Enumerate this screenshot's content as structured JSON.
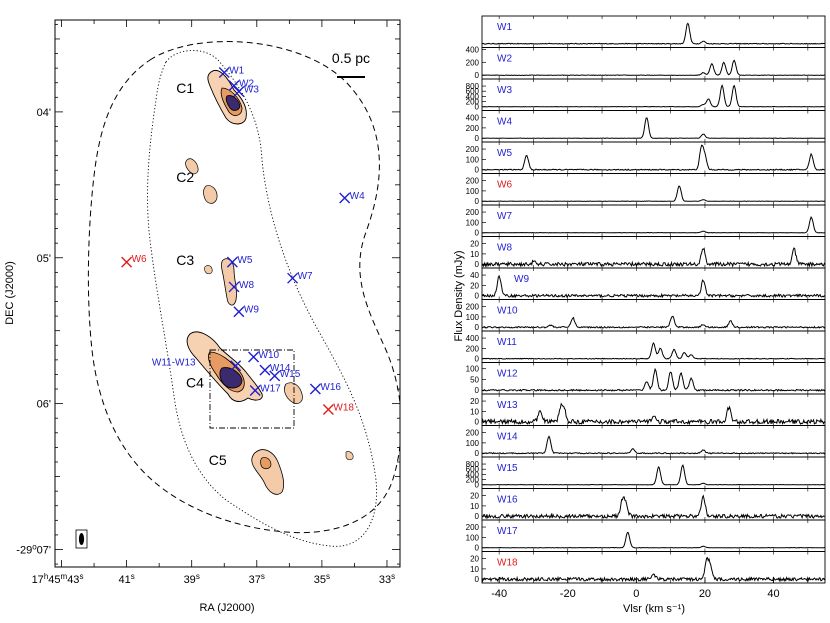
{
  "colors": {
    "blue": "#1f1fd2",
    "red": "#e01b1b",
    "contour_light": "#f4cba8",
    "contour_mid": "#e69a5e",
    "contour_dark": "#b2541f",
    "contour_core": "#3b2a6e"
  },
  "chart_data": [
    {
      "type": "map",
      "xlabel": "RA (J2000)",
      "ylabel": "DEC (J2000)",
      "x_ticks": [
        "17h45m43s",
        "41s",
        "39s",
        "37s",
        "35s",
        "33s"
      ],
      "y_ticks": [
        "04'",
        "05'",
        "06'",
        "-29°07'"
      ],
      "ra_sec_range": [
        43.2,
        32.6
      ],
      "dec_arcmin_range": [
        3.37,
        7.12
      ],
      "scale_bar_label": "0.5 pc",
      "regions": [
        {
          "name": "C1",
          "ra": 39.2,
          "dec": 3.87
        },
        {
          "name": "C2",
          "ra": 39.2,
          "dec": 4.48
        },
        {
          "name": "C3",
          "ra": 39.2,
          "dec": 5.05
        },
        {
          "name": "C4",
          "ra": 38.9,
          "dec": 5.89
        },
        {
          "name": "C5",
          "ra": 38.2,
          "dec": 6.42
        }
      ],
      "masers": [
        {
          "name": "W1",
          "ra": 38.0,
          "dec": 3.73,
          "color": "blue"
        },
        {
          "name": "W2",
          "ra": 37.7,
          "dec": 3.82,
          "color": "blue"
        },
        {
          "name": "W3",
          "ra": 37.55,
          "dec": 3.86,
          "color": "blue"
        },
        {
          "name": "W4",
          "ra": 34.3,
          "dec": 4.59,
          "color": "blue"
        },
        {
          "name": "W5",
          "ra": 37.75,
          "dec": 5.03,
          "color": "blue"
        },
        {
          "name": "W6",
          "ra": 41.0,
          "dec": 5.03,
          "color": "red"
        },
        {
          "name": "W7",
          "ra": 35.9,
          "dec": 5.14,
          "color": "blue"
        },
        {
          "name": "W8",
          "ra": 37.7,
          "dec": 5.2,
          "color": "blue"
        },
        {
          "name": "W9",
          "ra": 37.55,
          "dec": 5.37,
          "color": "blue"
        },
        {
          "name": "W10",
          "ra": 37.1,
          "dec": 5.68,
          "color": "blue"
        },
        {
          "name": "W11-W13",
          "ra": 37.65,
          "dec": 5.74,
          "color": "blue"
        },
        {
          "name": "W14",
          "ra": 36.75,
          "dec": 5.77,
          "color": "blue"
        },
        {
          "name": "W15",
          "ra": 36.45,
          "dec": 5.81,
          "color": "blue"
        },
        {
          "name": "W16",
          "ra": 35.2,
          "dec": 5.9,
          "color": "blue"
        },
        {
          "name": "W17",
          "ra": 37.05,
          "dec": 5.91,
          "color": "blue"
        },
        {
          "name": "W18",
          "ra": 34.8,
          "dec": 6.04,
          "color": "red"
        }
      ]
    },
    {
      "type": "line",
      "xlabel": "Vlsr (km s⁻¹)",
      "ylabel": "Flux Density (mJy)",
      "xlim": [
        -45,
        55
      ],
      "x_ticks": [
        -40,
        -20,
        0,
        20,
        40
      ],
      "series": [
        {
          "name": "W1",
          "color": "blue",
          "ymax": 60,
          "yticks": [],
          "peaks": [
            [
              15.0,
              48
            ],
            [
              19.5,
              6
            ]
          ],
          "noise": 0.9
        },
        {
          "name": "W2",
          "color": "blue",
          "ymax": 400,
          "yticks": [
            0,
            200,
            400
          ],
          "peaks": [
            [
              22.0,
              180
            ],
            [
              25.5,
              200
            ],
            [
              28.5,
              230
            ],
            [
              19.5,
              40
            ]
          ],
          "noise": 4
        },
        {
          "name": "W3",
          "color": "blue",
          "ymax": 1000,
          "yticks": [
            0,
            200,
            400,
            600,
            800
          ],
          "peaks": [
            [
              25.0,
              820
            ],
            [
              28.5,
              820
            ],
            [
              21.0,
              300
            ],
            [
              19.5,
              80
            ]
          ],
          "noise": 8
        },
        {
          "name": "W4",
          "color": "blue",
          "ymax": 500,
          "yticks": [
            0,
            200,
            400
          ],
          "peaks": [
            [
              3.0,
              400
            ],
            [
              19.5,
              80
            ]
          ],
          "noise": 4
        },
        {
          "name": "W5",
          "color": "blue",
          "ymax": 250,
          "yticks": [
            0,
            100,
            200
          ],
          "peaks": [
            [
              -32.0,
              140
            ],
            [
              19.0,
              210
            ],
            [
              20.0,
              120
            ],
            [
              51.0,
              150
            ]
          ],
          "noise": 5
        },
        {
          "name": "W6",
          "color": "red",
          "ymax": 250,
          "yticks": [
            0,
            100,
            200
          ],
          "peaks": [
            [
              12.5,
              150
            ],
            [
              19.5,
              15
            ]
          ],
          "noise": 2
        },
        {
          "name": "W7",
          "color": "blue",
          "ymax": 250,
          "yticks": [
            0,
            100,
            200
          ],
          "peaks": [
            [
              51.0,
              150
            ],
            [
              19.5,
              15
            ]
          ],
          "noise": 2
        },
        {
          "name": "W8",
          "color": "blue",
          "ymax": 25,
          "yticks": [
            0,
            10,
            20
          ],
          "peaks": [
            [
              19.5,
              16
            ],
            [
              46.0,
              14
            ],
            [
              -30.0,
              2
            ]
          ],
          "noise": 1.8
        },
        {
          "name": "W9",
          "color": "blue",
          "ymax": 50,
          "yticks": [
            0,
            20,
            40
          ],
          "peaks": [
            [
              -40.0,
              38
            ],
            [
              19.5,
              30
            ]
          ],
          "noise": 2.5
        },
        {
          "name": "W10",
          "color": "blue",
          "ymax": 250,
          "yticks": [
            0,
            100,
            200
          ],
          "peaks": [
            [
              -18.5,
              90
            ],
            [
              10.5,
              110
            ],
            [
              27.5,
              60
            ],
            [
              -25.0,
              20
            ],
            [
              19.5,
              25
            ]
          ],
          "noise": 7
        },
        {
          "name": "W11",
          "color": "blue",
          "ymax": 500,
          "yticks": [
            0,
            200,
            400
          ],
          "peaks": [
            [
              5.0,
              300
            ],
            [
              7.0,
              200
            ],
            [
              11.0,
              180
            ],
            [
              14.0,
              120
            ],
            [
              16.0,
              80
            ]
          ],
          "noise": 7
        },
        {
          "name": "W12",
          "color": "blue",
          "ymax": 120,
          "yticks": [
            0,
            50,
            100
          ],
          "peaks": [
            [
              5.5,
              95
            ],
            [
              10.0,
              85
            ],
            [
              13.0,
              80
            ],
            [
              16.0,
              55
            ],
            [
              3.0,
              40
            ]
          ],
          "noise": 3.5
        },
        {
          "name": "W13",
          "color": "blue",
          "ymax": 25,
          "yticks": [
            0,
            10,
            20
          ],
          "peaks": [
            [
              -28.0,
              12
            ],
            [
              -22.0,
              14
            ],
            [
              -21.0,
              10
            ],
            [
              27.0,
              14
            ],
            [
              5.0,
              6
            ]
          ],
          "noise": 2.2
        },
        {
          "name": "W14",
          "color": "blue",
          "ymax": 250,
          "yticks": [
            0,
            100,
            200
          ],
          "peaks": [
            [
              -25.5,
              160
            ],
            [
              -1.0,
              40
            ],
            [
              19.5,
              30
            ]
          ],
          "noise": 5
        },
        {
          "name": "W15",
          "color": "blue",
          "ymax": 1000,
          "yticks": [
            0,
            200,
            400,
            600,
            800
          ],
          "peaks": [
            [
              6.5,
              690
            ],
            [
              13.5,
              760
            ],
            [
              19.5,
              60
            ]
          ],
          "noise": 8
        },
        {
          "name": "W16",
          "color": "blue",
          "ymax": 25,
          "yticks": [
            0,
            10,
            20
          ],
          "peaks": [
            [
              -4.0,
              16
            ],
            [
              -3.0,
              10
            ],
            [
              19.5,
              20
            ]
          ],
          "noise": 1.8
        },
        {
          "name": "W17",
          "color": "blue",
          "ymax": 250,
          "yticks": [
            0,
            100,
            200
          ],
          "peaks": [
            [
              -2.5,
              150
            ],
            [
              19.5,
              15
            ]
          ],
          "noise": 2
        },
        {
          "name": "W18",
          "color": "red",
          "ymax": 25,
          "yticks": [
            0,
            10,
            20
          ],
          "peaks": [
            [
              20.5,
              17
            ],
            [
              21.5,
              12
            ],
            [
              5.0,
              5
            ]
          ],
          "noise": 1.6
        }
      ]
    }
  ]
}
